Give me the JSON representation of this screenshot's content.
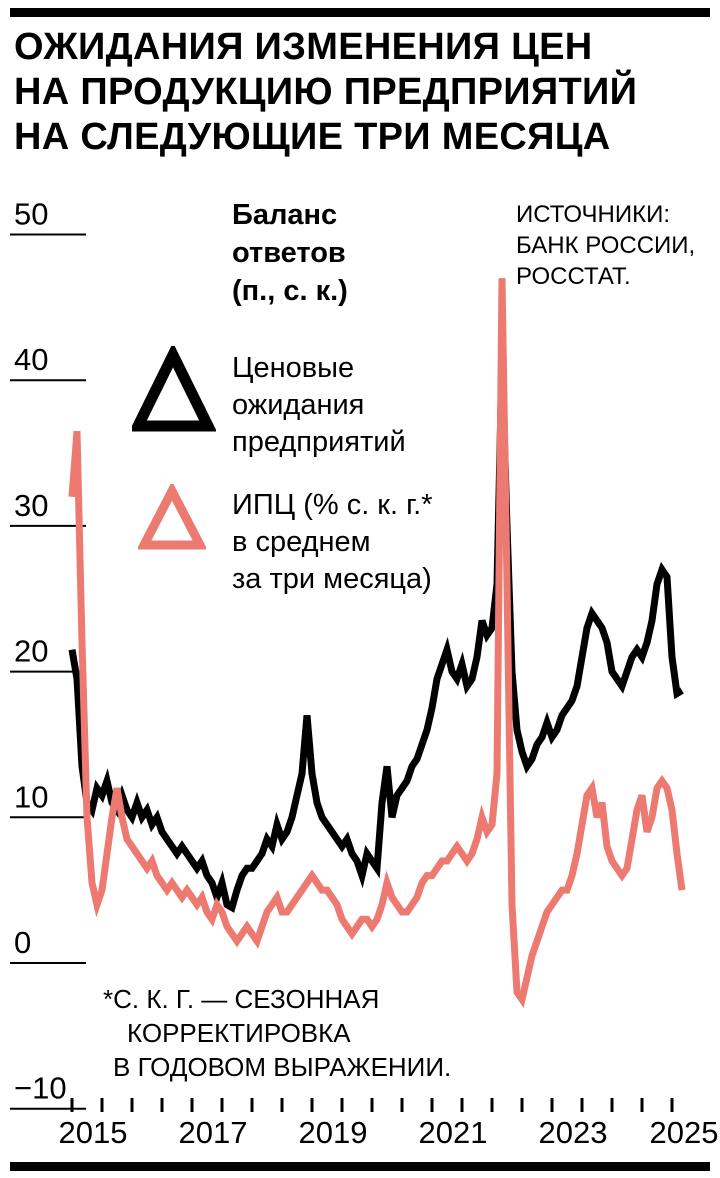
{
  "title_lines": [
    "ОЖИДАНИЯ ИЗМЕНЕНИЯ ЦЕН",
    "НА ПРОДУКЦИЮ ПРЕДПРИЯТИЙ",
    "НА СЛЕДУЮЩИЕ ТРИ МЕСЯЦА"
  ],
  "legend": {
    "unit_lines": [
      "Баланс",
      "ответов",
      "(п., с. к.)"
    ],
    "sources_lines": [
      "ИСТОЧНИКИ:",
      "БАНК РОССИИ,",
      "РОССТАТ."
    ],
    "series1_lines": [
      "Ценовые",
      "ожидания",
      "предприятий"
    ],
    "series2_lines": [
      "ИПЦ (% с. к. г.*",
      "в среднем",
      "за три месяца)"
    ]
  },
  "footnote_lines": [
    "*С. К. Г. — СЕЗОННАЯ",
    "КОРРЕКТИРОВКА",
    "В ГОДОВОМ ВЫРАЖЕНИИ."
  ],
  "colors": {
    "black": "#000000",
    "red": "#ed7a70"
  },
  "chart_data": {
    "type": "line",
    "title": "Ожидания изменения цен на продукцию предприятий на следующие три месяца",
    "ylabel": "Баланс ответов (п., с. к.)",
    "sources": "Банк России, Росстат",
    "frequency": "monthly",
    "x_start": "2015-01",
    "x_end": "2025-03",
    "ylim": [
      -10,
      50
    ],
    "grid": "y-ticks-left-only",
    "legend_position": "top-left-inside",
    "y_tick_values": [
      50,
      40,
      30,
      20,
      10,
      0,
      -10
    ],
    "y_tick_labels": [
      "50",
      "40",
      "30",
      "20",
      "10",
      "0",
      "−10"
    ],
    "x_tick_years": [
      2015,
      2017,
      2019,
      2021,
      2023,
      2025
    ],
    "x_minor_tick_interval_months": 6,
    "series": [
      {
        "key": "expectations",
        "name": "Ценовые ожидания предприятий",
        "color": "#000000",
        "values": [
          21.5,
          19.5,
          13.5,
          11,
          10.5,
          12,
          11.5,
          12.5,
          11,
          10.5,
          11.5,
          10.5,
          10,
          11,
          10,
          10.5,
          9.5,
          10,
          9,
          8.5,
          8,
          7.5,
          8,
          7.5,
          7,
          6.5,
          7,
          6,
          5.5,
          4.5,
          5.5,
          4,
          3.8,
          5,
          6,
          6.5,
          6.5,
          7,
          7.5,
          8.5,
          8,
          9.5,
          8.5,
          9,
          10,
          11.5,
          13,
          17,
          13,
          11,
          10,
          9.5,
          9,
          8.5,
          8,
          8.5,
          7.5,
          7,
          6,
          7.5,
          7,
          6.5,
          11,
          13.5,
          10,
          11.5,
          12,
          12.5,
          13.5,
          14,
          15,
          16,
          17.5,
          19.5,
          20.5,
          21.5,
          20,
          19.5,
          20.5,
          19,
          19.5,
          21,
          23.5,
          22.5,
          23,
          26,
          41.5,
          30,
          20,
          16,
          14.5,
          13.5,
          14,
          15,
          15.5,
          16.5,
          15.5,
          16,
          17,
          17.5,
          18,
          19,
          21,
          23,
          24,
          23.5,
          23,
          22,
          20,
          19.5,
          19,
          20,
          21,
          21.5,
          21,
          22,
          23.5,
          26,
          27,
          26.5,
          21,
          18.5,
          18.7
        ]
      },
      {
        "key": "cpi",
        "name": "ИПЦ (% с. к. г. в среднем за три месяца)",
        "color": "#ed7a70",
        "values": [
          32,
          36.5,
          22,
          10,
          5.5,
          4,
          5,
          7.5,
          10,
          12,
          10,
          8.5,
          8,
          7.5,
          7,
          6.5,
          7,
          6,
          5.5,
          5,
          5.5,
          5,
          4.5,
          5,
          4.5,
          4,
          4.5,
          3.5,
          3,
          4,
          3.5,
          2.5,
          2,
          1.5,
          2,
          2.5,
          2,
          1.5,
          2.5,
          3.5,
          4,
          4.5,
          3.5,
          3.5,
          4,
          4.5,
          5,
          5.5,
          6,
          5.5,
          5,
          5,
          4.5,
          4,
          3,
          2.5,
          2,
          2.5,
          3,
          3,
          2.5,
          3,
          4,
          5.5,
          4.5,
          4,
          3.5,
          3.5,
          4,
          4.5,
          5.5,
          6,
          6,
          6.5,
          7,
          7,
          7.5,
          8,
          7.5,
          7,
          7.5,
          8.5,
          10,
          9,
          9.5,
          13,
          47,
          26,
          4,
          -2,
          -2.5,
          -1,
          0.5,
          1.5,
          2.5,
          3.5,
          4,
          4.5,
          5,
          5,
          6,
          7.5,
          9.5,
          11.5,
          12,
          10,
          11,
          8,
          7,
          6.5,
          6,
          6.5,
          8.5,
          10.5,
          11.5,
          9,
          10,
          12,
          12.5,
          12,
          10.5,
          7.5,
          5
        ]
      }
    ]
  }
}
